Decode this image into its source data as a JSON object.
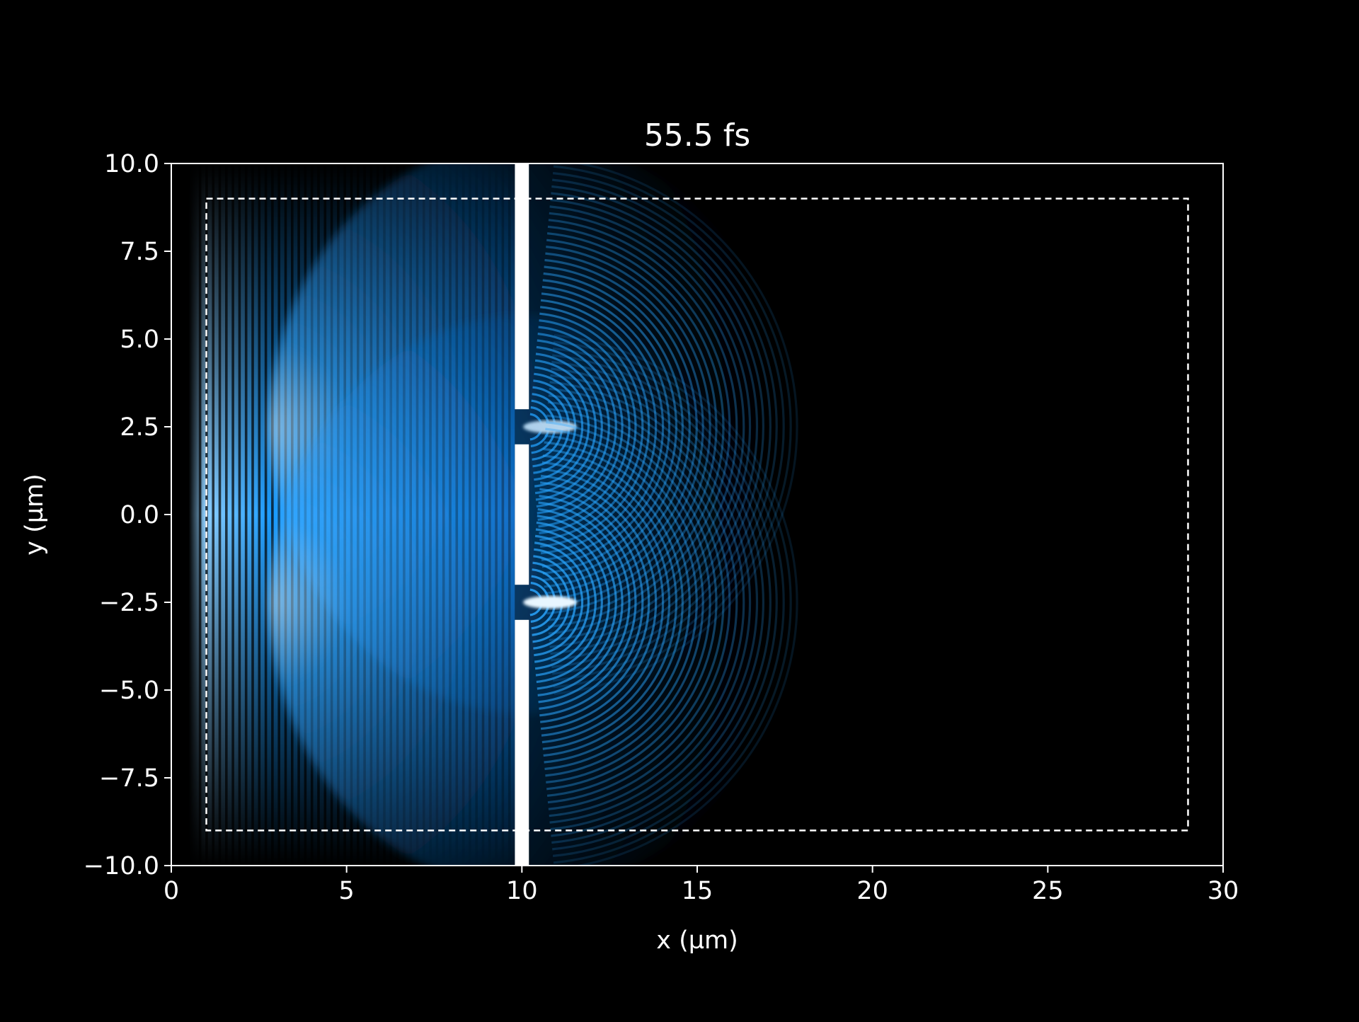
{
  "chart_data": {
    "type": "heatmap",
    "title": "55.5 fs",
    "xlabel": "x (µm)",
    "ylabel": "y (µm)",
    "xlim": [
      0,
      30
    ],
    "ylim": [
      -10,
      10
    ],
    "xticks": [
      0,
      5,
      10,
      15,
      20,
      25,
      30
    ],
    "xtick_labels": [
      "0",
      "5",
      "10",
      "15",
      "20",
      "25",
      "30"
    ],
    "yticks": [
      10.0,
      7.5,
      5.0,
      2.5,
      0.0,
      -2.5,
      -5.0,
      -7.5,
      -10.0
    ],
    "ytick_labels": [
      "10.0",
      "7.5",
      "5.0",
      "2.5",
      "0.0",
      "−2.5",
      "−5.0",
      "−7.5",
      "−10.0"
    ],
    "grid": false,
    "background_color": "#000000",
    "colormap_accent": "#1a9cff",
    "screen": {
      "x_range": [
        9.8,
        10.2
      ],
      "full_y_range": [
        -10,
        10
      ],
      "slits": [
        {
          "center_y": 2.5,
          "y_range": [
            2.0,
            3.0
          ]
        },
        {
          "center_y": -2.5,
          "y_range": [
            -3.0,
            -2.0
          ]
        }
      ]
    },
    "incident_wave": {
      "x_range": [
        0.5,
        10
      ],
      "y_extent": [
        -5,
        5
      ]
    },
    "diffracted_wavefront_edge_x": 18,
    "dashed_region": {
      "x_range": [
        1,
        29
      ],
      "y_range": [
        -9,
        9
      ]
    }
  }
}
